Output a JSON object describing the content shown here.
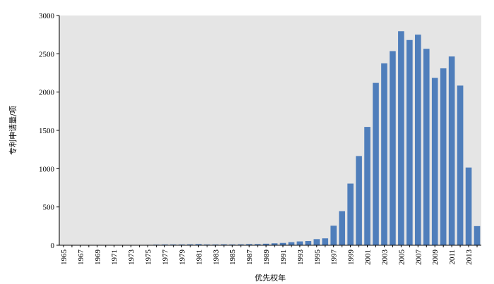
{
  "chart_data": {
    "type": "bar",
    "xlabel": "优先权年",
    "ylabel": "专利申请量/项",
    "ylim": [
      0,
      3000
    ],
    "yticks": [
      0,
      500,
      1000,
      1500,
      2000,
      2500,
      3000
    ],
    "grid": false,
    "background": "#e5e5e5",
    "bar_color": "#4f7ebb",
    "categories": [
      "1965",
      "1966",
      "1967",
      "1968",
      "1969",
      "1970",
      "1971",
      "1972",
      "1973",
      "1974",
      "1975",
      "1976",
      "1977",
      "1978",
      "1979",
      "1980",
      "1981",
      "1982",
      "1983",
      "1984",
      "1985",
      "1986",
      "1987",
      "1988",
      "1989",
      "1990",
      "1991",
      "1992",
      "1993",
      "1994",
      "1995",
      "1996",
      "1997",
      "1998",
      "1999",
      "2000",
      "2001",
      "2002",
      "2003",
      "2004",
      "2005",
      "2006",
      "2007",
      "2008",
      "2009",
      "2010",
      "2011",
      "2012",
      "2013",
      "2014"
    ],
    "xtick_labels": [
      "1965",
      "1967",
      "1969",
      "1971",
      "1973",
      "1975",
      "1977",
      "1979",
      "1981",
      "1983",
      "1985",
      "1987",
      "1989",
      "1991",
      "1993",
      "1995",
      "1997",
      "1999",
      "2001",
      "2003",
      "2005",
      "2007",
      "2009",
      "2011",
      "2013"
    ],
    "values": [
      2,
      2,
      3,
      2,
      3,
      2,
      3,
      2,
      3,
      3,
      5,
      8,
      10,
      10,
      10,
      12,
      15,
      10,
      10,
      12,
      10,
      12,
      15,
      15,
      20,
      25,
      30,
      40,
      50,
      55,
      80,
      90,
      255,
      445,
      805,
      1165,
      1545,
      2120,
      2375,
      2535,
      2795,
      2680,
      2750,
      2565,
      2185,
      2310,
      2465,
      2085,
      1015,
      250
    ]
  }
}
